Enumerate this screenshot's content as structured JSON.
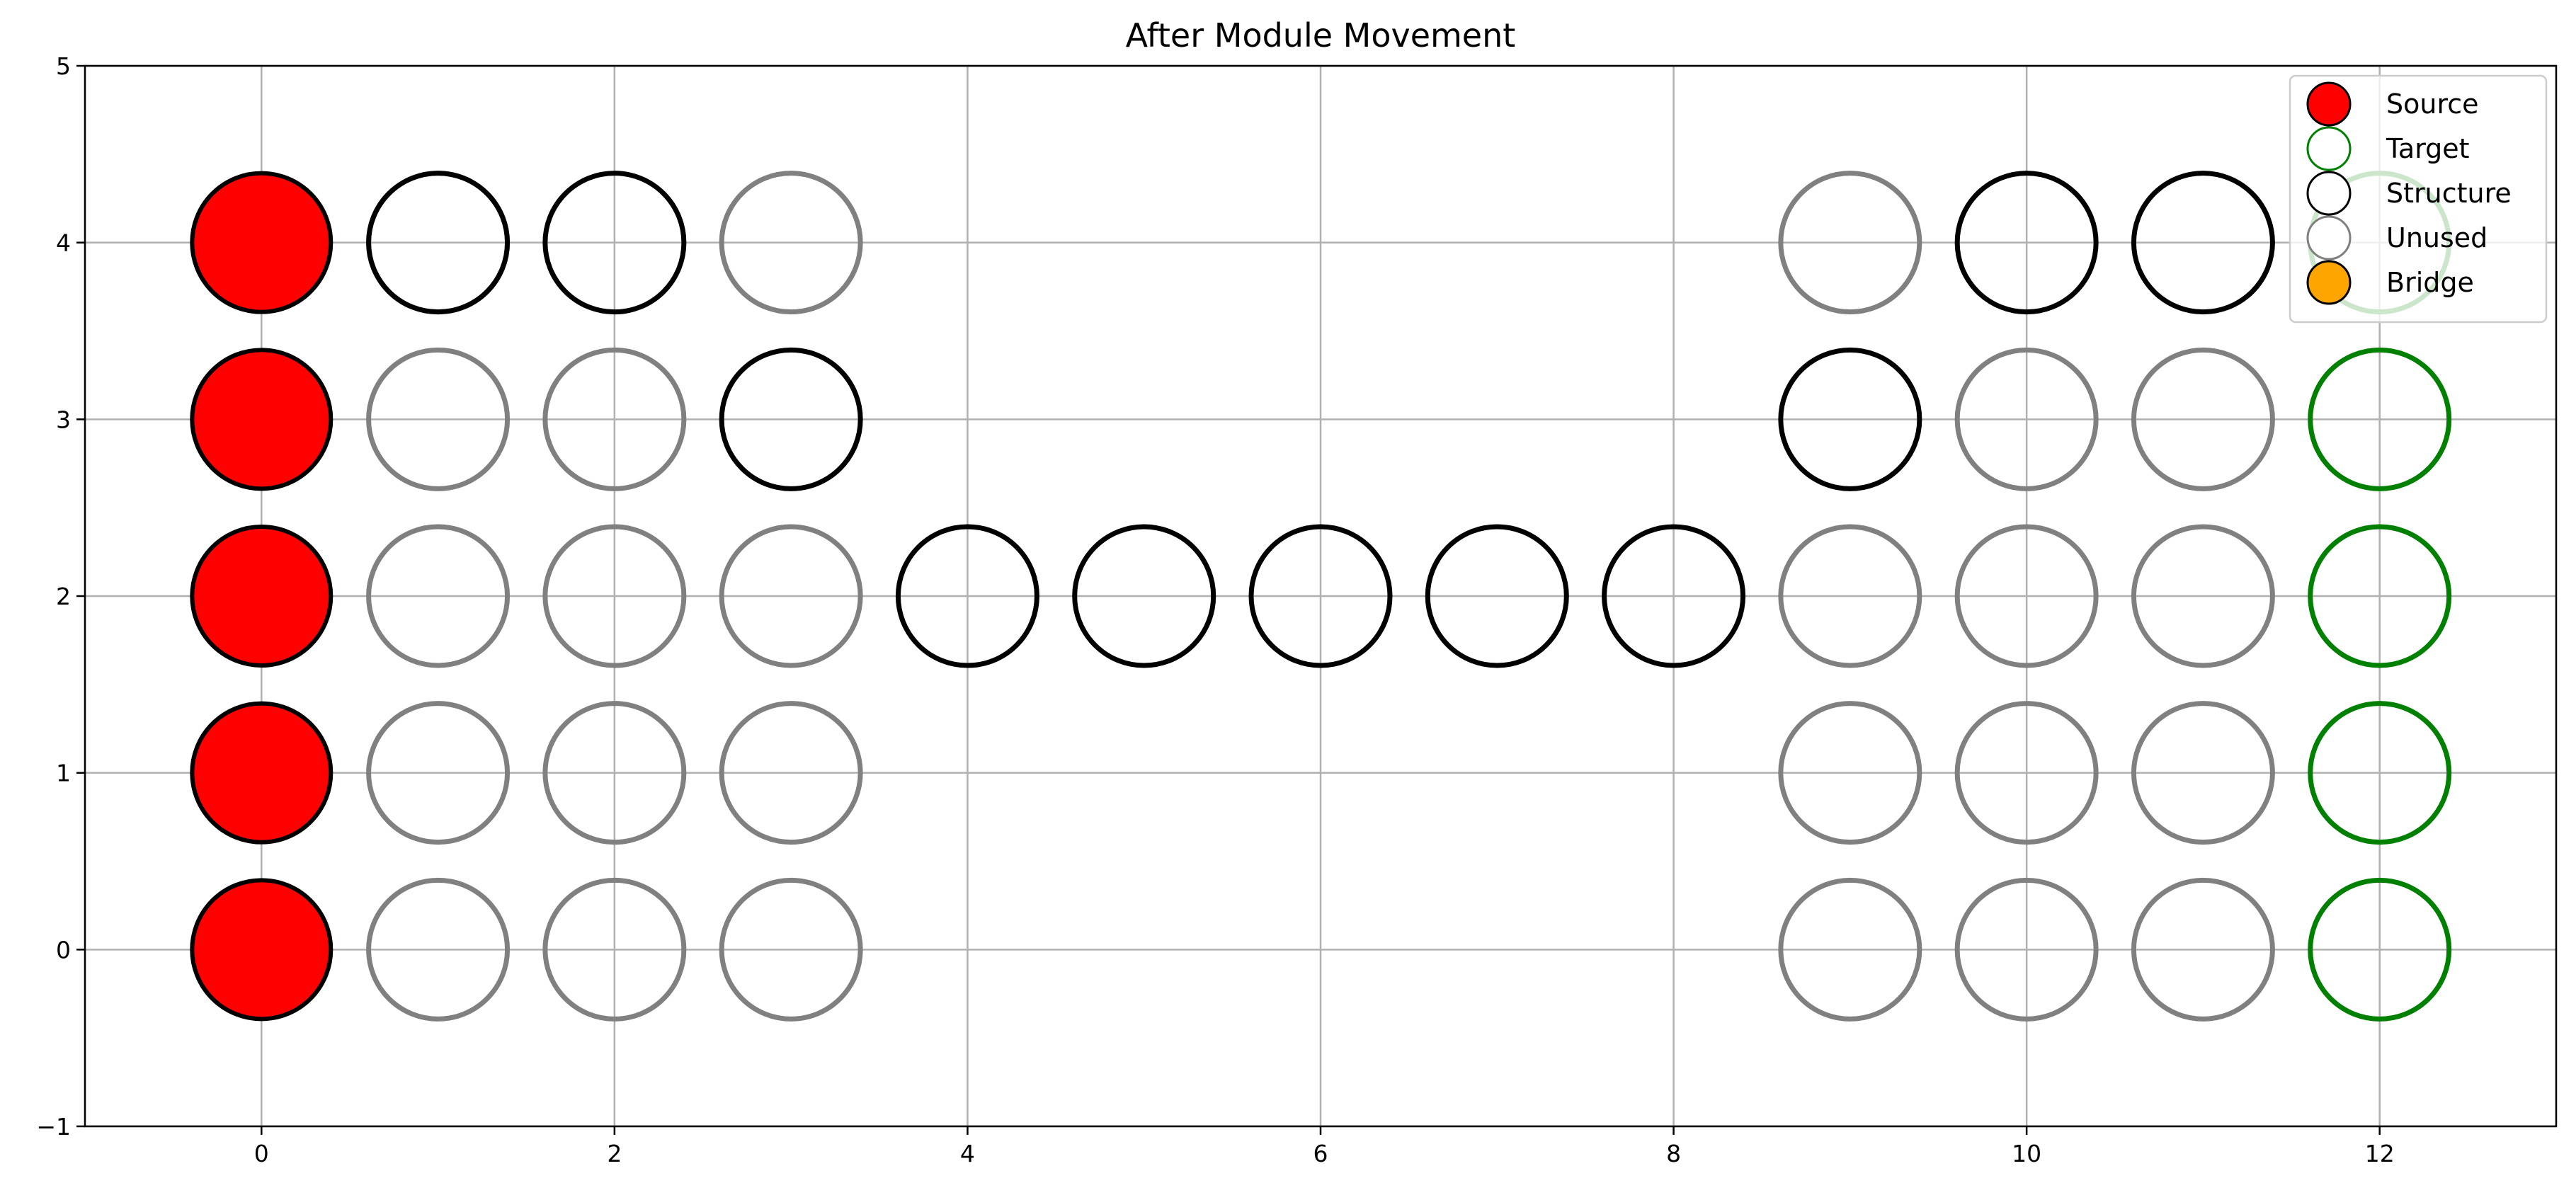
{
  "chart_data": {
    "type": "scatter",
    "title": "After Module Movement",
    "xlabel": "",
    "ylabel": "",
    "xlim": [
      -1,
      13
    ],
    "ylim": [
      -1,
      5
    ],
    "xticks": [
      0,
      2,
      4,
      6,
      8,
      10,
      12
    ],
    "yticks": [
      -1,
      0,
      1,
      2,
      3,
      4,
      5
    ],
    "grid": true,
    "legend_position": "top-right",
    "colors": {
      "Source": "#ff0000",
      "Target": "#008000",
      "Structure": "#000000",
      "Unused": "#808080",
      "Bridge": "#ffa500"
    },
    "legend": [
      {
        "name": "Source",
        "style": "filled",
        "face": "#ff0000",
        "edge": "#000000"
      },
      {
        "name": "Target",
        "style": "hollow",
        "face": "#ffffff",
        "edge": "#008000"
      },
      {
        "name": "Structure",
        "style": "hollow",
        "face": "#ffffff",
        "edge": "#000000"
      },
      {
        "name": "Unused",
        "style": "hollow",
        "face": "#ffffff",
        "edge": "#808080"
      },
      {
        "name": "Bridge",
        "style": "filled",
        "face": "#ffa500",
        "edge": "#000000"
      }
    ],
    "series": [
      {
        "name": "Unused",
        "points": [
          [
            1,
            4
          ],
          [
            1,
            3
          ],
          [
            1,
            2
          ],
          [
            1,
            1
          ],
          [
            1,
            0
          ],
          [
            2,
            3
          ],
          [
            2,
            2
          ],
          [
            2,
            1
          ],
          [
            2,
            0
          ],
          [
            3,
            4
          ],
          [
            3,
            2
          ],
          [
            3,
            1
          ],
          [
            3,
            0
          ],
          [
            9,
            4
          ],
          [
            9,
            2
          ],
          [
            9,
            1
          ],
          [
            9,
            0
          ],
          [
            10,
            3
          ],
          [
            10,
            2
          ],
          [
            10,
            1
          ],
          [
            10,
            0
          ],
          [
            11,
            3
          ],
          [
            11,
            2
          ],
          [
            11,
            1
          ],
          [
            11,
            0
          ]
        ]
      },
      {
        "name": "Structure",
        "points": [
          [
            1,
            4
          ],
          [
            2,
            4
          ],
          [
            3,
            3
          ],
          [
            4,
            2
          ],
          [
            5,
            2
          ],
          [
            6,
            2
          ],
          [
            7,
            2
          ],
          [
            8,
            2
          ],
          [
            9,
            3
          ],
          [
            10,
            4
          ],
          [
            11,
            4
          ]
        ]
      },
      {
        "name": "Target",
        "points": [
          [
            12,
            4
          ],
          [
            12,
            3
          ],
          [
            12,
            2
          ],
          [
            12,
            1
          ],
          [
            12,
            0
          ]
        ]
      },
      {
        "name": "Source",
        "points": [
          [
            0,
            4
          ],
          [
            0,
            3
          ],
          [
            0,
            2
          ],
          [
            0,
            1
          ],
          [
            0,
            0
          ]
        ]
      },
      {
        "name": "Bridge",
        "points": []
      }
    ]
  }
}
